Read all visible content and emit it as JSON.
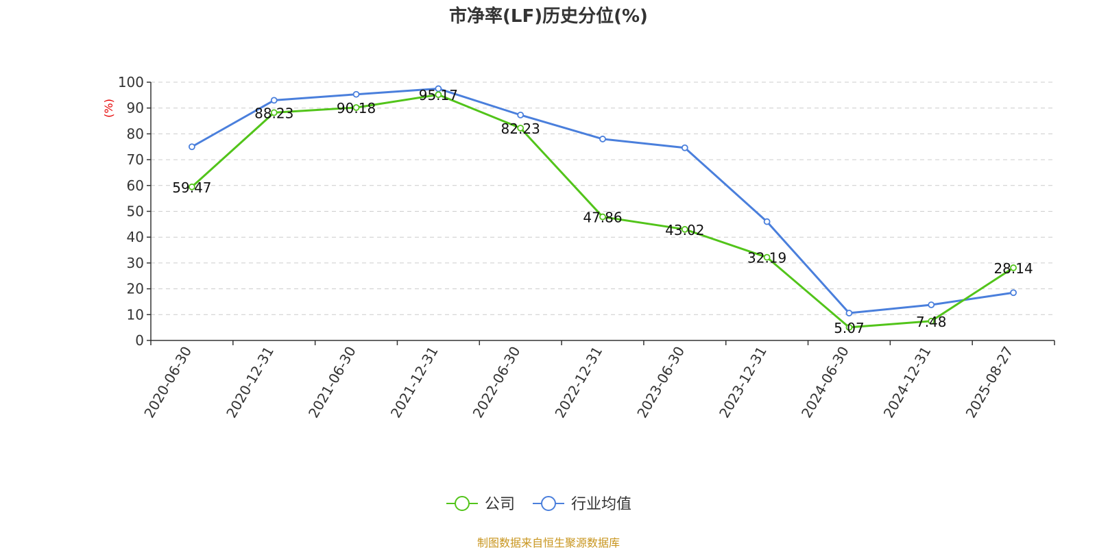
{
  "chart_data": {
    "type": "line",
    "title": "市净率(LF)历史分位(%)",
    "ylabel": "(%)",
    "xlabel": "",
    "ylim": [
      0,
      100
    ],
    "yticks": [
      0,
      10,
      20,
      30,
      40,
      50,
      60,
      70,
      80,
      90,
      100
    ],
    "grid": true,
    "legend_position": "bottom",
    "categories": [
      "2020-06-30",
      "2020-12-31",
      "2021-06-30",
      "2021-12-31",
      "2022-06-30",
      "2022-12-31",
      "2023-06-30",
      "2023-12-31",
      "2024-06-30",
      "2024-12-31",
      "2025-08-27"
    ],
    "series": [
      {
        "name": "公司",
        "color": "#52c41a",
        "show_labels": true,
        "values": [
          59.47,
          88.23,
          90.18,
          95.17,
          82.23,
          47.86,
          43.02,
          32.19,
          5.07,
          7.48,
          28.14
        ]
      },
      {
        "name": "行业均值",
        "color": "#4a7fdc",
        "show_labels": false,
        "values": [
          75.0,
          93.0,
          95.3,
          97.5,
          87.3,
          78.0,
          74.6,
          46.0,
          10.6,
          13.8,
          18.5
        ]
      }
    ]
  },
  "source_text": "制图数据来自恒生聚源数据库"
}
